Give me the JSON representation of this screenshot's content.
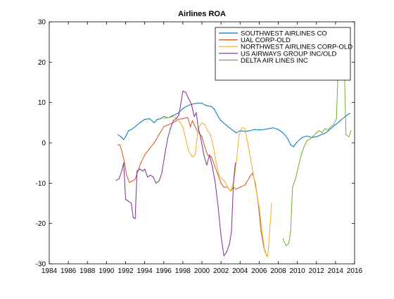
{
  "chart_data": {
    "type": "line",
    "title": "Airlines ROA",
    "xlabel": "",
    "ylabel": "",
    "xlim": [
      1984,
      2016
    ],
    "ylim": [
      -30,
      30
    ],
    "xticks": [
      1984,
      1986,
      1988,
      1990,
      1992,
      1994,
      1996,
      1998,
      2000,
      2002,
      2004,
      2006,
      2008,
      2010,
      2012,
      2014,
      2016
    ],
    "yticks": [
      -30,
      -20,
      -10,
      0,
      10,
      20,
      30
    ],
    "grid": false,
    "legend_position": "top-right",
    "series": [
      {
        "name": "SOUTHWEST AIRLINES CO",
        "color": "#0072BD",
        "points": [
          [
            1991.2,
            2
          ],
          [
            1991.5,
            1.5
          ],
          [
            1991.8,
            0.8
          ],
          [
            1992.0,
            1.5
          ],
          [
            1992.3,
            3
          ],
          [
            1992.6,
            3.3
          ],
          [
            1993.0,
            4
          ],
          [
            1993.5,
            5
          ],
          [
            1994.0,
            5.8
          ],
          [
            1994.5,
            6
          ],
          [
            1995.0,
            5
          ],
          [
            1995.3,
            5.8
          ],
          [
            1995.7,
            6
          ],
          [
            1996.0,
            6.5
          ],
          [
            1996.5,
            6.2
          ],
          [
            1997.0,
            6.8
          ],
          [
            1997.5,
            7.3
          ],
          [
            1998.0,
            8.5
          ],
          [
            1998.5,
            9.2
          ],
          [
            1999.0,
            9.6
          ],
          [
            1999.5,
            9.8
          ],
          [
            2000.0,
            9.8
          ],
          [
            2000.5,
            9.2
          ],
          [
            2001.0,
            9
          ],
          [
            2001.3,
            8.3
          ],
          [
            2001.7,
            6.5
          ],
          [
            2002.0,
            5.5
          ],
          [
            2002.5,
            4.5
          ],
          [
            2003.0,
            3.5
          ],
          [
            2003.3,
            3
          ],
          [
            2003.6,
            2.5
          ],
          [
            2004.0,
            3
          ],
          [
            2004.5,
            2.8
          ],
          [
            2005.0,
            3
          ],
          [
            2005.5,
            3.3
          ],
          [
            2006.0,
            3.2
          ],
          [
            2006.5,
            3.3
          ],
          [
            2007.0,
            3.5
          ],
          [
            2007.5,
            3.7
          ],
          [
            2008.0,
            3.3
          ],
          [
            2008.5,
            2.5
          ],
          [
            2009.0,
            1
          ],
          [
            2009.3,
            -0.5
          ],
          [
            2009.6,
            -1
          ],
          [
            2010.0,
            0.3
          ],
          [
            2010.5,
            1.3
          ],
          [
            2011.0,
            1.7
          ],
          [
            2011.5,
            1.3
          ],
          [
            2012.0,
            1.5
          ],
          [
            2012.5,
            2
          ],
          [
            2013.0,
            2.5
          ],
          [
            2013.5,
            3.5
          ],
          [
            2014.0,
            4.5
          ],
          [
            2014.5,
            5.5
          ],
          [
            2015.0,
            6.5
          ],
          [
            2015.5,
            7.3
          ]
        ]
      },
      {
        "name": "UAL CORP-OLD",
        "color": "#D95319",
        "points": [
          [
            1991.2,
            -0.5
          ],
          [
            1991.4,
            -0.5
          ],
          [
            1991.6,
            -2
          ],
          [
            1991.9,
            -5
          ],
          [
            1992.1,
            -8
          ],
          [
            1992.4,
            -9.8
          ],
          [
            1992.7,
            -9.5
          ],
          [
            1993.0,
            -9
          ],
          [
            1993.3,
            -7
          ],
          [
            1993.6,
            -5
          ],
          [
            1994.0,
            -3
          ],
          [
            1994.5,
            -1.5
          ],
          [
            1995.0,
            0
          ],
          [
            1995.5,
            2
          ],
          [
            1996.0,
            4
          ],
          [
            1996.5,
            4.5
          ],
          [
            1997.0,
            5
          ],
          [
            1997.5,
            5.8
          ],
          [
            1998.0,
            6
          ],
          [
            1998.5,
            6.3
          ],
          [
            1998.8,
            4
          ],
          [
            1999.0,
            5.5
          ],
          [
            1999.5,
            3
          ],
          [
            2000.0,
            1.5
          ],
          [
            2000.3,
            -1
          ],
          [
            2000.6,
            -3
          ],
          [
            2001.0,
            -3.5
          ],
          [
            2001.3,
            -5.5
          ],
          [
            2001.7,
            -8
          ],
          [
            2002.0,
            -10
          ],
          [
            2002.3,
            -11
          ],
          [
            2002.7,
            -11
          ],
          [
            2003.0,
            -12
          ],
          [
            2003.3,
            -11
          ],
          [
            2003.6,
            -11.5
          ],
          [
            2004.0,
            -11
          ],
          [
            2004.5,
            -10.5
          ],
          [
            2005.0,
            -8.5
          ],
          [
            2005.3,
            -7.5
          ],
          [
            2005.6,
            -10
          ],
          [
            2005.9,
            -15
          ],
          [
            2006.2,
            -22
          ],
          [
            2006.5,
            -26
          ],
          [
            2006.8,
            -28
          ]
        ]
      },
      {
        "name": "NORTHWEST AIRLINES CORP-OLD",
        "color": "#EDB120",
        "points": [
          [
            1996.0,
            6
          ],
          [
            1996.5,
            6.2
          ],
          [
            1997.0,
            6.5
          ],
          [
            1997.5,
            5.8
          ],
          [
            1998.0,
            4
          ],
          [
            1998.3,
            1
          ],
          [
            1998.6,
            -2
          ],
          [
            1999.0,
            -3.5
          ],
          [
            1999.3,
            -3
          ],
          [
            1999.6,
            3.5
          ],
          [
            2000.0,
            5
          ],
          [
            2000.3,
            4.5
          ],
          [
            2000.6,
            3
          ],
          [
            2000.9,
            2
          ],
          [
            2001.2,
            -1
          ],
          [
            2001.5,
            -5
          ],
          [
            2001.8,
            -8
          ],
          [
            2002.1,
            -9
          ],
          [
            2002.4,
            -9.5
          ],
          [
            2002.7,
            -11
          ],
          [
            2003.0,
            -12
          ],
          [
            2003.3,
            -10
          ],
          [
            2003.6,
            -5
          ],
          [
            2003.9,
            2
          ],
          [
            2004.2,
            3.8
          ],
          [
            2004.5,
            3.5
          ],
          [
            2004.8,
            0
          ],
          [
            2005.1,
            -4
          ],
          [
            2005.4,
            -8
          ],
          [
            2005.7,
            -12
          ],
          [
            2006.0,
            -16
          ],
          [
            2006.3,
            -22
          ],
          [
            2006.6,
            -27
          ],
          [
            2006.9,
            -28.2
          ],
          [
            2007.1,
            -22
          ],
          [
            2007.3,
            -15
          ]
        ]
      },
      {
        "name": "US AIRWAYS GROUP INC/OLD",
        "color": "#7E2F8E",
        "points": [
          [
            1991.0,
            -9.3
          ],
          [
            1991.3,
            -9
          ],
          [
            1991.6,
            -7
          ],
          [
            1991.8,
            -5
          ],
          [
            1992.0,
            -14
          ],
          [
            1992.3,
            -14.5
          ],
          [
            1992.6,
            -15
          ],
          [
            1992.8,
            -18.5
          ],
          [
            1993.0,
            -18.8
          ],
          [
            1993.2,
            -7
          ],
          [
            1993.5,
            -6.5
          ],
          [
            1993.8,
            -7
          ],
          [
            1994.0,
            -6.5
          ],
          [
            1994.3,
            -8.5
          ],
          [
            1994.6,
            -8
          ],
          [
            1994.9,
            -8.5
          ],
          [
            1995.2,
            -10
          ],
          [
            1995.5,
            -9.5
          ],
          [
            1995.8,
            -7.5
          ],
          [
            1996.1,
            -3
          ],
          [
            1996.4,
            1
          ],
          [
            1996.7,
            3.5
          ],
          [
            1997.0,
            5.5
          ],
          [
            1997.3,
            6
          ],
          [
            1997.6,
            7
          ],
          [
            1998.0,
            12.8
          ],
          [
            1998.3,
            12.5
          ],
          [
            1998.6,
            11
          ],
          [
            1998.9,
            9.5
          ],
          [
            1999.2,
            6.5
          ],
          [
            1999.4,
            7.5
          ],
          [
            1999.6,
            4
          ],
          [
            1999.9,
            1
          ],
          [
            2000.2,
            -3
          ],
          [
            2000.5,
            -5.5
          ],
          [
            2000.8,
            -3
          ],
          [
            2001.1,
            -6
          ],
          [
            2001.4,
            -10
          ],
          [
            2001.7,
            -16
          ],
          [
            2002.0,
            -23
          ],
          [
            2002.3,
            -28
          ],
          [
            2002.6,
            -27
          ],
          [
            2002.9,
            -25
          ],
          [
            2003.1,
            -22
          ],
          [
            2003.3,
            -10
          ],
          [
            2003.5,
            -5
          ]
        ]
      },
      {
        "name": "DELTA AIR LINES INC",
        "color": "#77AC30",
        "points": [
          [
            2008.5,
            -23.8
          ],
          [
            2008.8,
            -25.5
          ],
          [
            2009.1,
            -25
          ],
          [
            2009.3,
            -22
          ],
          [
            2009.5,
            -11
          ],
          [
            2009.8,
            -9
          ],
          [
            2010.1,
            -6
          ],
          [
            2010.4,
            -3
          ],
          [
            2010.7,
            -1
          ],
          [
            2011.0,
            0.5
          ],
          [
            2011.3,
            1
          ],
          [
            2011.6,
            1.5
          ],
          [
            2012.0,
            2.5
          ],
          [
            2012.3,
            3
          ],
          [
            2012.6,
            2.5
          ],
          [
            2012.9,
            3.5
          ],
          [
            2013.2,
            3.2
          ],
          [
            2013.5,
            4
          ],
          [
            2013.8,
            4.5
          ],
          [
            2014.1,
            6
          ],
          [
            2014.3,
            20
          ],
          [
            2014.6,
            22
          ],
          [
            2014.9,
            20.5
          ],
          [
            2015.1,
            2
          ],
          [
            2015.4,
            1.5
          ],
          [
            2015.6,
            3
          ]
        ]
      }
    ]
  }
}
